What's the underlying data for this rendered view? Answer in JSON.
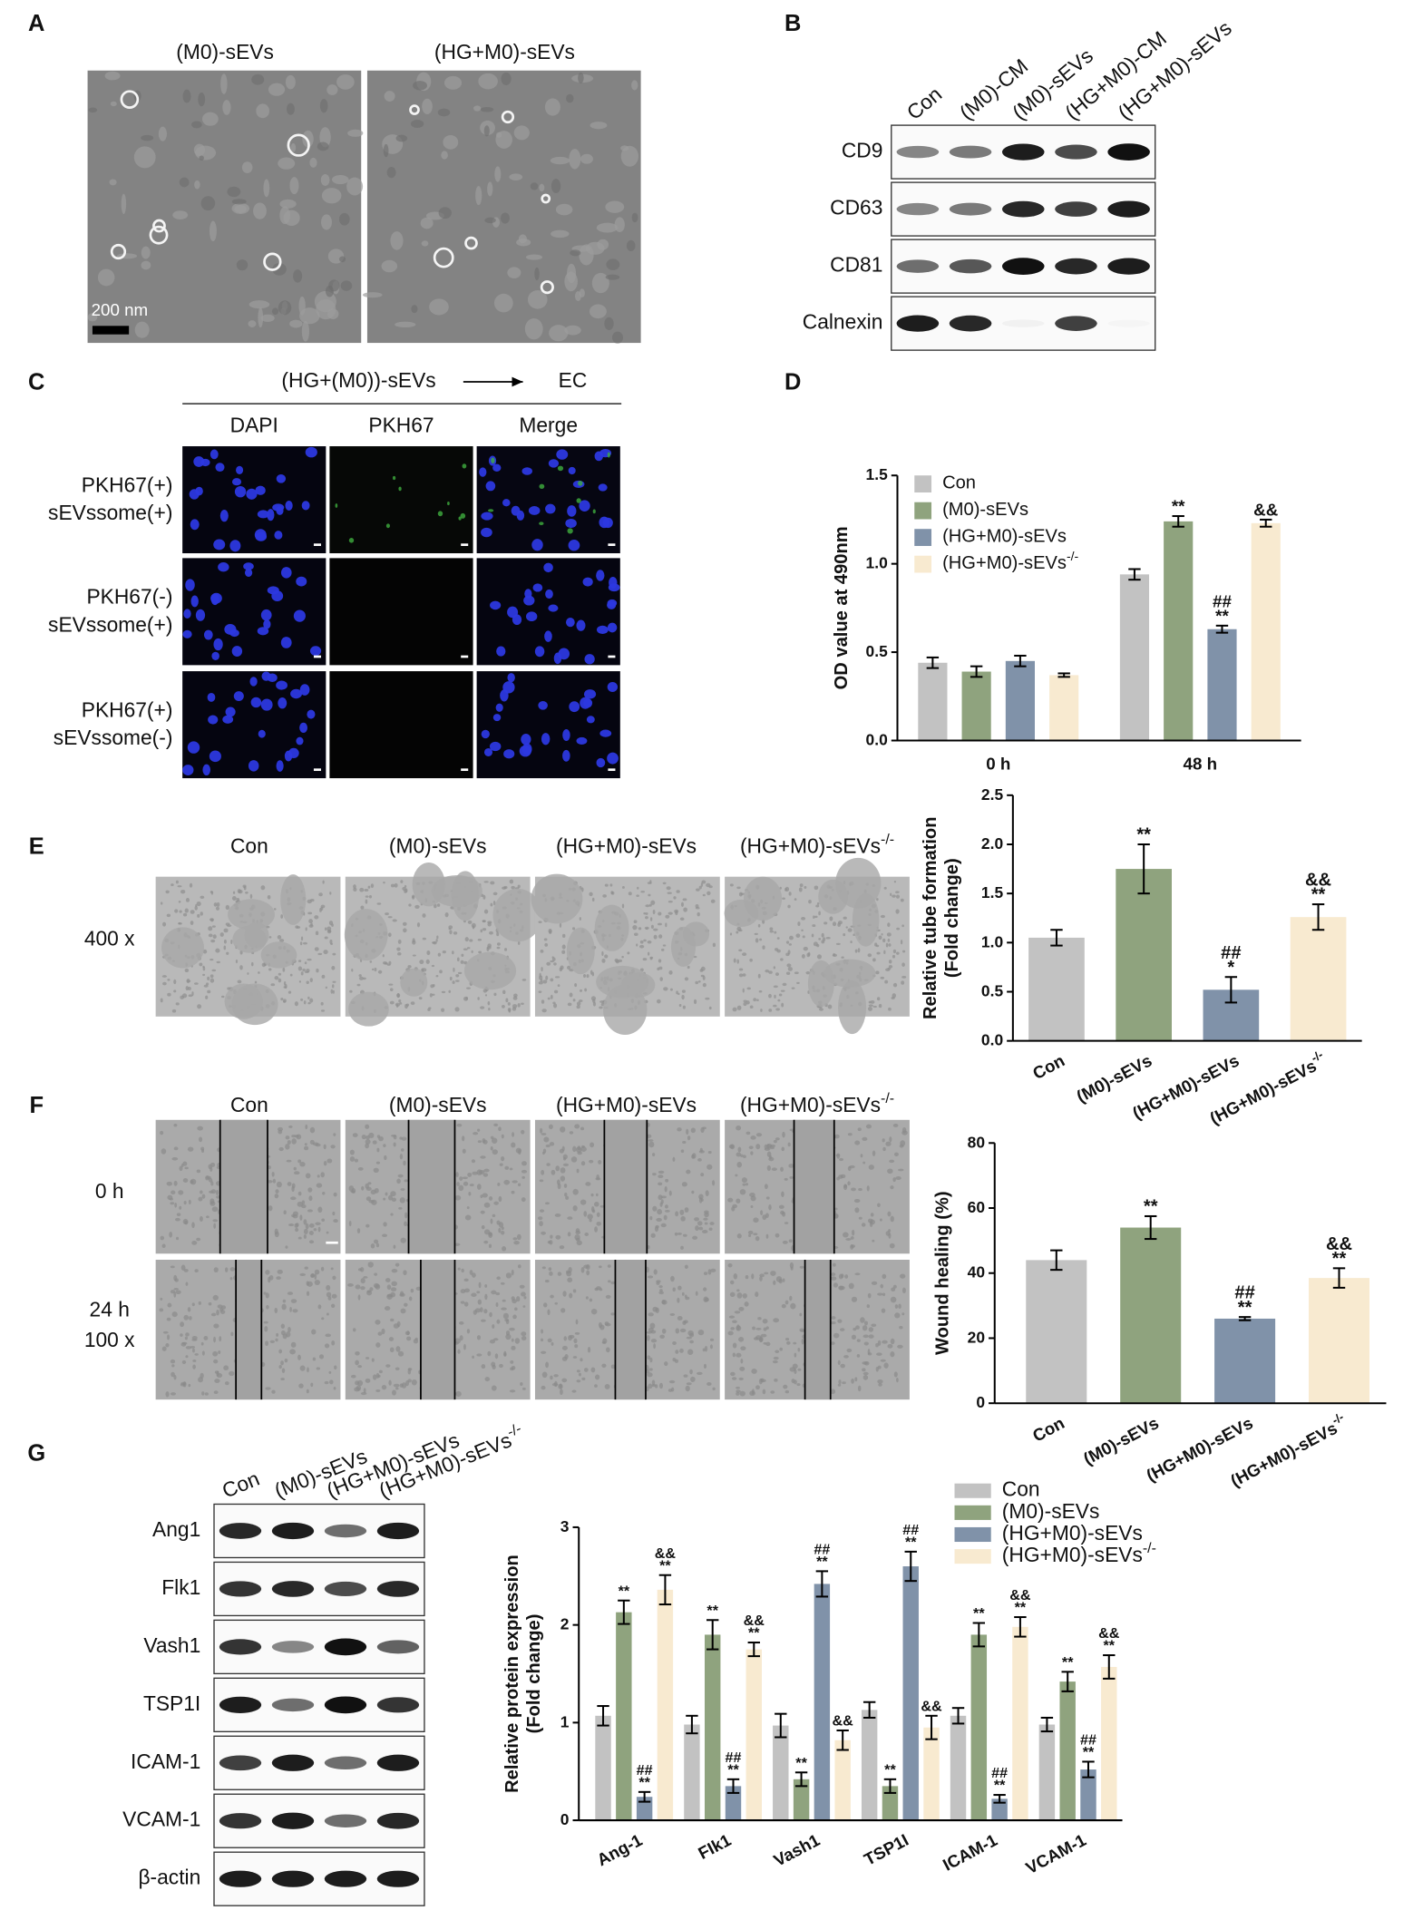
{
  "panel_labels": [
    "A",
    "B",
    "C",
    "D",
    "E",
    "F",
    "G"
  ],
  "panel_a": {
    "images": [
      "(M0)-sEVs",
      "(HG+M0)-sEVs"
    ],
    "scale_bar": "200 nm"
  },
  "panel_b": {
    "lanes": [
      "Con",
      "(M0)-CM",
      "(M0)-sEVs",
      "(HG+M0)-CM",
      "(HG+M0)-sEVs"
    ],
    "proteins": [
      "CD9",
      "CD63",
      "CD81",
      "Calnexin"
    ]
  },
  "panel_c": {
    "treatment": "(HG+(M0))-sEVs",
    "target": "EC",
    "columns": [
      "DAPI",
      "PKH67",
      "Merge"
    ],
    "rows": [
      [
        "PKH67(+)",
        "sEVssome(+)"
      ],
      [
        "PKH67(-)",
        "sEVssome(+)"
      ],
      [
        "PKH67(+)",
        "sEVssome(-)"
      ]
    ]
  },
  "panel_e": {
    "groups": [
      "Con",
      "(M0)-sEVs",
      "(HG+M0)-sEVs",
      "(HG+M0)-sEVs"
    ],
    "group_superscripts": [
      null,
      null,
      null,
      "-/-"
    ],
    "magnification": "400 x"
  },
  "panel_f": {
    "groups": [
      "Con",
      "(M0)-sEVs",
      "(HG+M0)-sEVs",
      "(HG+M0)-sEVs"
    ],
    "group_superscripts": [
      null,
      null,
      null,
      "-/-"
    ],
    "times": [
      "0 h",
      "24 h"
    ],
    "magnification": "100 x"
  },
  "panel_g": {
    "lanes": [
      "Con",
      "(M0)-sEVs",
      "(HG+M0)-sEVs",
      "(HG+M0)-sEVs"
    ],
    "lane_superscripts": [
      null,
      null,
      null,
      "-/-"
    ],
    "proteins": [
      "Ang1",
      "Flk1",
      "Vash1",
      "TSP1I",
      "ICAM-1",
      "VCAM-1",
      "β-actin"
    ]
  },
  "chart_data": [
    {
      "type": "bar",
      "categories": [
        "0 h",
        "48 h"
      ],
      "series": [
        {
          "name": "Con",
          "color": "#c2c2c2",
          "values": [
            0.44,
            0.94
          ],
          "errors": [
            0.03,
            0.03
          ],
          "annotations": [
            [],
            []
          ]
        },
        {
          "name": "(M0)-sEVs",
          "color": "#8fa37e",
          "values": [
            0.39,
            1.24
          ],
          "errors": [
            0.03,
            0.03
          ],
          "annotations": [
            [],
            [
              "**"
            ]
          ]
        },
        {
          "name": "(HG+M0)-sEVs",
          "color": "#8092a9",
          "values": [
            0.45,
            0.63
          ],
          "errors": [
            0.03,
            0.02
          ],
          "annotations": [
            [],
            [
              "##",
              "**"
            ]
          ]
        },
        {
          "name": "(HG+M0)-sEVs",
          "superscript": "-/-",
          "color": "#f8ead0",
          "values": [
            0.37,
            1.23
          ],
          "errors": [
            0.01,
            0.02
          ],
          "annotations": [
            [],
            [
              "&&"
            ]
          ]
        }
      ],
      "ylim": [
        0,
        1.5
      ],
      "yticks": [
        {
          "value": 0,
          "label": "0.0"
        },
        0.5,
        {
          "value": 1,
          "label": "1.0"
        },
        1.5
      ],
      "ylabel": [
        "OD value at 490nm"
      ],
      "legend": "top-left"
    },
    {
      "type": "bar",
      "categories": [
        "Con",
        "(M0)-sEVs",
        "(HG+M0)-sEVs",
        "(HG+M0)-sEVs"
      ],
      "category_superscripts": [
        null,
        null,
        null,
        "-/-"
      ],
      "values": [
        1.05,
        1.75,
        0.52,
        1.26
      ],
      "errors": [
        0.08,
        0.25,
        0.13,
        0.13
      ],
      "colors": [
        "#c2c2c2",
        "#8fa37e",
        "#8092a9",
        "#f8ead0"
      ],
      "annotations": [
        [],
        [
          "**"
        ],
        [
          "##",
          "*"
        ],
        [
          "&&",
          "**"
        ]
      ],
      "ylim": [
        0,
        2.5
      ],
      "yticks": [
        {
          "value": 0,
          "label": "0.0"
        },
        0.5,
        {
          "value": 1,
          "label": "1.0"
        },
        1.5,
        {
          "value": 2,
          "label": "2.0"
        },
        2.5
      ],
      "ylabel": [
        "Relative tube formation",
        "(Fold change)"
      ]
    },
    {
      "type": "bar",
      "categories": [
        "Con",
        "(M0)-sEVs",
        "(HG+M0)-sEVs",
        "(HG+M0)-sEVs"
      ],
      "category_superscripts": [
        null,
        null,
        null,
        "-/-"
      ],
      "values": [
        44,
        54,
        26,
        38.5
      ],
      "errors": [
        3,
        3.5,
        0.5,
        3
      ],
      "colors": [
        "#c2c2c2",
        "#8fa37e",
        "#8092a9",
        "#f8ead0"
      ],
      "annotations": [
        [],
        [
          "**"
        ],
        [
          "##",
          "**"
        ],
        [
          "&&",
          "**"
        ]
      ],
      "ylim": [
        0,
        80
      ],
      "yticks": [
        0,
        20,
        40,
        60,
        80
      ],
      "ylabel": [
        "Wound healing (%)"
      ]
    },
    {
      "type": "bar",
      "categories": [
        "Ang-1",
        "FIk1",
        "Vash1",
        "TSP1I",
        "ICAM-1",
        "VCAM-1"
      ],
      "series": [
        {
          "name": "Con",
          "color": "#c2c2c2",
          "values": [
            1.07,
            0.98,
            0.97,
            1.13,
            1.07,
            0.98
          ],
          "errors": [
            0.1,
            0.09,
            0.12,
            0.08,
            0.08,
            0.07
          ],
          "annotations": [
            [],
            [],
            [],
            [],
            [],
            []
          ]
        },
        {
          "name": "(M0)-sEVs",
          "color": "#8fa37e",
          "values": [
            2.13,
            1.9,
            0.42,
            0.35,
            1.9,
            1.42
          ],
          "errors": [
            0.12,
            0.15,
            0.07,
            0.07,
            0.12,
            0.1
          ],
          "annotations": [
            [
              "**"
            ],
            [
              "**"
            ],
            [
              "**"
            ],
            [
              "**"
            ],
            [
              "**"
            ],
            [
              "**"
            ]
          ]
        },
        {
          "name": "(HG+M0)-sEVs",
          "color": "#8092a9",
          "values": [
            0.24,
            0.35,
            2.42,
            2.6,
            0.22,
            0.52
          ],
          "errors": [
            0.05,
            0.07,
            0.13,
            0.15,
            0.04,
            0.08
          ],
          "annotations": [
            [
              "##",
              "**"
            ],
            [
              "##",
              "**"
            ],
            [
              "##",
              "**"
            ],
            [
              "##",
              "**"
            ],
            [
              "##",
              "**"
            ],
            [
              "##",
              "**"
            ]
          ]
        },
        {
          "name": "(HG+M0)-sEVs",
          "superscript": "-/-",
          "color": "#f8ead0",
          "values": [
            2.36,
            1.75,
            0.82,
            0.95,
            1.98,
            1.57
          ],
          "errors": [
            0.15,
            0.07,
            0.1,
            0.12,
            0.1,
            0.12
          ],
          "annotations": [
            [
              "&&",
              "**"
            ],
            [
              "&&",
              "**"
            ],
            [
              "&&"
            ],
            [
              "&&"
            ],
            [
              "&&",
              "**"
            ],
            [
              "&&",
              "**"
            ]
          ]
        }
      ],
      "ylim": [
        0,
        3
      ],
      "yticks": [
        0,
        1,
        2,
        3
      ],
      "ylabel": [
        "Relative protein expression",
        "(Fold change)"
      ],
      "legend": "top-right"
    }
  ]
}
